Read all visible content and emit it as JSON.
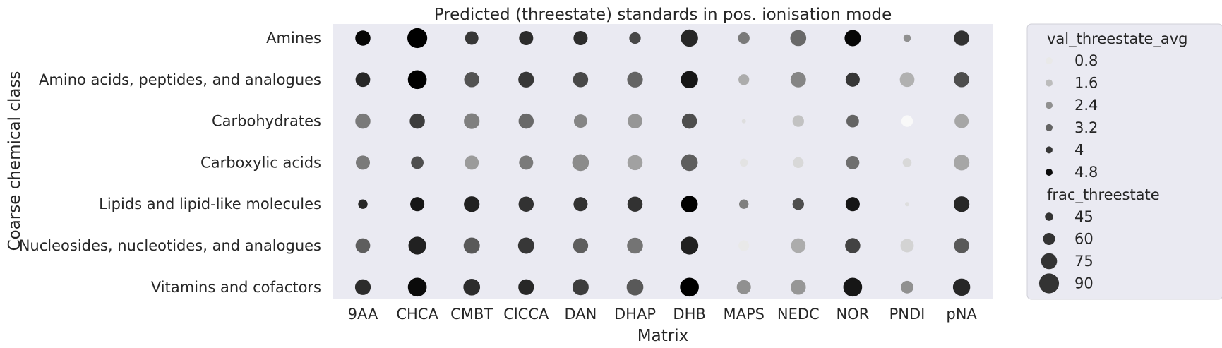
{
  "chart_data": {
    "type": "scatter",
    "title": "Predicted (threestate) standards in pos. ionisation mode",
    "xlabel": "Matrix",
    "ylabel": "Coarse chemical class",
    "categories_x": [
      "9AA",
      "CHCA",
      "CMBT",
      "ClCCA",
      "DAN",
      "DHAP",
      "DHB",
      "MAPS",
      "NEDC",
      "NOR",
      "PNDI",
      "pNA"
    ],
    "categories_y": [
      "Amines",
      "Amino acids, peptides, and analogues",
      "Carbohydrates",
      "Carboxylic acids",
      "Lipids and lipid-like molecules",
      "Nucleosides, nucleotides, and analogues",
      "Vitamins and cofactors"
    ],
    "legend": {
      "color_title": "val_threestate_avg",
      "color_values": [
        0.8,
        1.6,
        2.4,
        3.2,
        4.0,
        4.8
      ],
      "size_title": "frac_threestate",
      "size_values": [
        45,
        60,
        75,
        90
      ]
    },
    "color_range": [
      0.4,
      5.0
    ],
    "size_range": [
      30,
      95
    ],
    "points": [
      {
        "x": "9AA",
        "y": "Amines",
        "val_threestate_avg": 4.9,
        "frac_threestate": 72
      },
      {
        "x": "CHCA",
        "y": "Amines",
        "val_threestate_avg": 5.0,
        "frac_threestate": 90
      },
      {
        "x": "CMBT",
        "y": "Amines",
        "val_threestate_avg": 4.0,
        "frac_threestate": 65
      },
      {
        "x": "ClCCA",
        "y": "Amines",
        "val_threestate_avg": 4.2,
        "frac_threestate": 68
      },
      {
        "x": "DAN",
        "y": "Amines",
        "val_threestate_avg": 4.2,
        "frac_threestate": 68
      },
      {
        "x": "DHAP",
        "y": "Amines",
        "val_threestate_avg": 3.7,
        "frac_threestate": 58
      },
      {
        "x": "DHB",
        "y": "Amines",
        "val_threestate_avg": 4.3,
        "frac_threestate": 80
      },
      {
        "x": "MAPS",
        "y": "Amines",
        "val_threestate_avg": 2.8,
        "frac_threestate": 58
      },
      {
        "x": "NEDC",
        "y": "Amines",
        "val_threestate_avg": 3.1,
        "frac_threestate": 75
      },
      {
        "x": "NOR",
        "y": "Amines",
        "val_threestate_avg": 4.9,
        "frac_threestate": 76
      },
      {
        "x": "PNDI",
        "y": "Amines",
        "val_threestate_avg": 2.4,
        "frac_threestate": 42
      },
      {
        "x": "pNA",
        "y": "Amines",
        "val_threestate_avg": 4.1,
        "frac_threestate": 72
      },
      {
        "x": "9AA",
        "y": "Amino acids, peptides, and analogues",
        "val_threestate_avg": 4.3,
        "frac_threestate": 70
      },
      {
        "x": "CHCA",
        "y": "Amino acids, peptides, and analogues",
        "val_threestate_avg": 5.0,
        "frac_threestate": 86
      },
      {
        "x": "CMBT",
        "y": "Amino acids, peptides, and analogues",
        "val_threestate_avg": 3.5,
        "frac_threestate": 72
      },
      {
        "x": "ClCCA",
        "y": "Amino acids, peptides, and analogues",
        "val_threestate_avg": 4.0,
        "frac_threestate": 74
      },
      {
        "x": "DAN",
        "y": "Amino acids, peptides, and analogues",
        "val_threestate_avg": 3.7,
        "frac_threestate": 72
      },
      {
        "x": "DHAP",
        "y": "Amino acids, peptides, and analogues",
        "val_threestate_avg": 3.2,
        "frac_threestate": 74
      },
      {
        "x": "DHB",
        "y": "Amino acids, peptides, and analogues",
        "val_threestate_avg": 4.6,
        "frac_threestate": 80
      },
      {
        "x": "MAPS",
        "y": "Amino acids, peptides, and analogues",
        "val_threestate_avg": 1.9,
        "frac_threestate": 55
      },
      {
        "x": "NEDC",
        "y": "Amino acids, peptides, and analogues",
        "val_threestate_avg": 2.6,
        "frac_threestate": 73
      },
      {
        "x": "NOR",
        "y": "Amino acids, peptides, and analogues",
        "val_threestate_avg": 4.0,
        "frac_threestate": 68
      },
      {
        "x": "PNDI",
        "y": "Amino acids, peptides, and analogues",
        "val_threestate_avg": 1.8,
        "frac_threestate": 70
      },
      {
        "x": "pNA",
        "y": "Amino acids, peptides, and analogues",
        "val_threestate_avg": 3.6,
        "frac_threestate": 72
      },
      {
        "x": "9AA",
        "y": "Carbohydrates",
        "val_threestate_avg": 2.8,
        "frac_threestate": 72
      },
      {
        "x": "CHCA",
        "y": "Carbohydrates",
        "val_threestate_avg": 3.9,
        "frac_threestate": 72
      },
      {
        "x": "CMBT",
        "y": "Carbohydrates",
        "val_threestate_avg": 2.7,
        "frac_threestate": 74
      },
      {
        "x": "ClCCA",
        "y": "Carbohydrates",
        "val_threestate_avg": 3.1,
        "frac_threestate": 72
      },
      {
        "x": "DAN",
        "y": "Carbohydrates",
        "val_threestate_avg": 2.6,
        "frac_threestate": 65
      },
      {
        "x": "DHAP",
        "y": "Carbohydrates",
        "val_threestate_avg": 2.3,
        "frac_threestate": 70
      },
      {
        "x": "DHB",
        "y": "Carbohydrates",
        "val_threestate_avg": 3.6,
        "frac_threestate": 72
      },
      {
        "x": "MAPS",
        "y": "Carbohydrates",
        "val_threestate_avg": 1.0,
        "frac_threestate": 30
      },
      {
        "x": "NEDC",
        "y": "Carbohydrates",
        "val_threestate_avg": 1.5,
        "frac_threestate": 58
      },
      {
        "x": "NOR",
        "y": "Carbohydrates",
        "val_threestate_avg": 3.2,
        "frac_threestate": 62
      },
      {
        "x": "PNDI",
        "y": "Carbohydrates",
        "val_threestate_avg": 0.5,
        "frac_threestate": 58
      },
      {
        "x": "pNA",
        "y": "Carbohydrates",
        "val_threestate_avg": 2.0,
        "frac_threestate": 68
      },
      {
        "x": "9AA",
        "y": "Carboxylic acids",
        "val_threestate_avg": 2.8,
        "frac_threestate": 68
      },
      {
        "x": "CHCA",
        "y": "Carboxylic acids",
        "val_threestate_avg": 3.6,
        "frac_threestate": 62
      },
      {
        "x": "CMBT",
        "y": "Carboxylic acids",
        "val_threestate_avg": 2.2,
        "frac_threestate": 68
      },
      {
        "x": "ClCCA",
        "y": "Carboxylic acids",
        "val_threestate_avg": 2.8,
        "frac_threestate": 68
      },
      {
        "x": "DAN",
        "y": "Carboxylic acids",
        "val_threestate_avg": 2.5,
        "frac_threestate": 78
      },
      {
        "x": "DHAP",
        "y": "Carboxylic acids",
        "val_threestate_avg": 2.1,
        "frac_threestate": 72
      },
      {
        "x": "DHB",
        "y": "Carboxylic acids",
        "val_threestate_avg": 3.3,
        "frac_threestate": 78
      },
      {
        "x": "MAPS",
        "y": "Carboxylic acids",
        "val_threestate_avg": 0.9,
        "frac_threestate": 45
      },
      {
        "x": "NEDC",
        "y": "Carboxylic acids",
        "val_threestate_avg": 1.1,
        "frac_threestate": 55
      },
      {
        "x": "NOR",
        "y": "Carboxylic acids",
        "val_threestate_avg": 3.0,
        "frac_threestate": 65
      },
      {
        "x": "PNDI",
        "y": "Carboxylic acids",
        "val_threestate_avg": 1.1,
        "frac_threestate": 48
      },
      {
        "x": "pNA",
        "y": "Carboxylic acids",
        "val_threestate_avg": 2.0,
        "frac_threestate": 74
      },
      {
        "x": "9AA",
        "y": "Lipids and lipid-like molecules",
        "val_threestate_avg": 4.3,
        "frac_threestate": 50
      },
      {
        "x": "CHCA",
        "y": "Lipids and lipid-like molecules",
        "val_threestate_avg": 4.6,
        "frac_threestate": 68
      },
      {
        "x": "CMBT",
        "y": "Lipids and lipid-like molecules",
        "val_threestate_avg": 4.4,
        "frac_threestate": 74
      },
      {
        "x": "ClCCA",
        "y": "Lipids and lipid-like molecules",
        "val_threestate_avg": 4.1,
        "frac_threestate": 72
      },
      {
        "x": "DAN",
        "y": "Lipids and lipid-like molecules",
        "val_threestate_avg": 4.1,
        "frac_threestate": 68
      },
      {
        "x": "DHAP",
        "y": "Lipids and lipid-like molecules",
        "val_threestate_avg": 4.1,
        "frac_threestate": 72
      },
      {
        "x": "DHB",
        "y": "Lipids and lipid-like molecules",
        "val_threestate_avg": 5.0,
        "frac_threestate": 78
      },
      {
        "x": "MAPS",
        "y": "Lipids and lipid-like molecules",
        "val_threestate_avg": 2.7,
        "frac_threestate": 50
      },
      {
        "x": "NEDC",
        "y": "Lipids and lipid-like molecules",
        "val_threestate_avg": 3.6,
        "frac_threestate": 58
      },
      {
        "x": "NOR",
        "y": "Lipids and lipid-like molecules",
        "val_threestate_avg": 4.6,
        "frac_threestate": 68
      },
      {
        "x": "PNDI",
        "y": "Lipids and lipid-like molecules",
        "val_threestate_avg": 1.0,
        "frac_threestate": 15
      },
      {
        "x": "pNA",
        "y": "Lipids and lipid-like molecules",
        "val_threestate_avg": 4.3,
        "frac_threestate": 74
      },
      {
        "x": "9AA",
        "y": "Nucleosides, nucleotides, and analogues",
        "val_threestate_avg": 3.3,
        "frac_threestate": 70
      },
      {
        "x": "CHCA",
        "y": "Nucleosides, nucleotides, and analogues",
        "val_threestate_avg": 4.4,
        "frac_threestate": 82
      },
      {
        "x": "CMBT",
        "y": "Nucleosides, nucleotides, and analogues",
        "val_threestate_avg": 3.4,
        "frac_threestate": 76
      },
      {
        "x": "ClCCA",
        "y": "Nucleosides, nucleotides, and analogues",
        "val_threestate_avg": 4.0,
        "frac_threestate": 76
      },
      {
        "x": "DAN",
        "y": "Nucleosides, nucleotides, and analogues",
        "val_threestate_avg": 3.3,
        "frac_threestate": 72
      },
      {
        "x": "DHAP",
        "y": "Nucleosides, nucleotides, and analogues",
        "val_threestate_avg": 2.9,
        "frac_threestate": 75
      },
      {
        "x": "DHB",
        "y": "Nucleosides, nucleotides, and analogues",
        "val_threestate_avg": 4.4,
        "frac_threestate": 82
      },
      {
        "x": "MAPS",
        "y": "Nucleosides, nucleotides, and analogues",
        "val_threestate_avg": 0.8,
        "frac_threestate": 55
      },
      {
        "x": "NEDC",
        "y": "Nucleosides, nucleotides, and analogues",
        "val_threestate_avg": 1.9,
        "frac_threestate": 70
      },
      {
        "x": "NOR",
        "y": "Nucleosides, nucleotides, and analogues",
        "val_threestate_avg": 3.8,
        "frac_threestate": 72
      },
      {
        "x": "PNDI",
        "y": "Nucleosides, nucleotides, and analogues",
        "val_threestate_avg": 1.2,
        "frac_threestate": 65
      },
      {
        "x": "pNA",
        "y": "Nucleosides, nucleotides, and analogues",
        "val_threestate_avg": 3.4,
        "frac_threestate": 72
      },
      {
        "x": "9AA",
        "y": "Vitamins and cofactors",
        "val_threestate_avg": 4.2,
        "frac_threestate": 74
      },
      {
        "x": "CHCA",
        "y": "Vitamins and cofactors",
        "val_threestate_avg": 4.8,
        "frac_threestate": 86
      },
      {
        "x": "CMBT",
        "y": "Vitamins and cofactors",
        "val_threestate_avg": 4.2,
        "frac_threestate": 78
      },
      {
        "x": "ClCCA",
        "y": "Vitamins and cofactors",
        "val_threestate_avg": 4.3,
        "frac_threestate": 74
      },
      {
        "x": "DAN",
        "y": "Vitamins and cofactors",
        "val_threestate_avg": 3.9,
        "frac_threestate": 76
      },
      {
        "x": "DHAP",
        "y": "Vitamins and cofactors",
        "val_threestate_avg": 3.4,
        "frac_threestate": 78
      },
      {
        "x": "DHB",
        "y": "Vitamins and cofactors",
        "val_threestate_avg": 5.0,
        "frac_threestate": 86
      },
      {
        "x": "MAPS",
        "y": "Vitamins and cofactors",
        "val_threestate_avg": 2.4,
        "frac_threestate": 68
      },
      {
        "x": "NEDC",
        "y": "Vitamins and cofactors",
        "val_threestate_avg": 2.3,
        "frac_threestate": 72
      },
      {
        "x": "NOR",
        "y": "Vitamins and cofactors",
        "val_threestate_avg": 4.6,
        "frac_threestate": 86
      },
      {
        "x": "PNDI",
        "y": "Vitamins and cofactors",
        "val_threestate_avg": 2.4,
        "frac_threestate": 62
      },
      {
        "x": "pNA",
        "y": "Vitamins and cofactors",
        "val_threestate_avg": 4.3,
        "frac_threestate": 80
      }
    ]
  }
}
